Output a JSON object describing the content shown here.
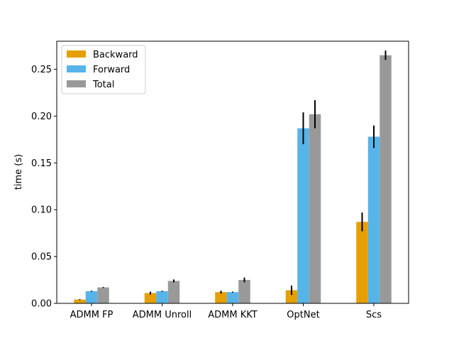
{
  "chart_data": {
    "type": "bar",
    "title": "",
    "xlabel": "",
    "ylabel": "time (s)",
    "ylim": [
      0,
      0.28
    ],
    "yticks": [
      "0.00",
      "0.05",
      "0.10",
      "0.15",
      "0.20",
      "0.25"
    ],
    "categories": [
      "ADMM FP",
      "ADMM Unroll",
      "ADMM KKT",
      "OptNet",
      "Scs"
    ],
    "legend_position": "top-left",
    "grid": false,
    "series": [
      {
        "name": "Backward",
        "color": "#e69f00",
        "values": [
          0.004,
          0.011,
          0.012,
          0.014,
          0.087
        ],
        "errors": [
          0.0005,
          0.0015,
          0.0015,
          0.005,
          0.01
        ]
      },
      {
        "name": "Forward",
        "color": "#56b4e9",
        "values": [
          0.013,
          0.013,
          0.012,
          0.187,
          0.178
        ],
        "errors": [
          0.0005,
          0.0005,
          0.0005,
          0.017,
          0.012
        ]
      },
      {
        "name": "Total",
        "color": "#999999",
        "values": [
          0.017,
          0.024,
          0.025,
          0.202,
          0.265
        ],
        "errors": [
          0.0005,
          0.0015,
          0.0025,
          0.015,
          0.005
        ]
      }
    ]
  }
}
